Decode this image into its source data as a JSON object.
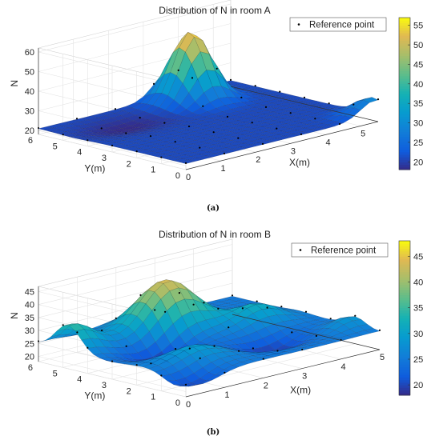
{
  "chart_data": [
    {
      "type": "surface",
      "title": "Distribution of N in room A",
      "xlabel": "X(m)",
      "ylabel": "Y(m)",
      "zlabel": "N",
      "x_ticks": [
        "0",
        "1",
        "2",
        "3",
        "4",
        "5"
      ],
      "y_ticks": [
        "0",
        "1",
        "2",
        "3",
        "4",
        "5",
        "6"
      ],
      "z_ticks": [
        "20",
        "30",
        "40",
        "50",
        "60"
      ],
      "xlim": [
        0,
        5.5
      ],
      "ylim": [
        0,
        6
      ],
      "zlim": [
        18,
        62
      ],
      "colorbar_ticks": [
        "20",
        "25",
        "30",
        "35",
        "40",
        "45",
        "50",
        "55"
      ],
      "colorbar_range": [
        18,
        57
      ],
      "colormap": "parula",
      "legend": "Reference point",
      "legend_position": "top-right",
      "grid": true,
      "caption": "(a)",
      "base_level": 21,
      "peaks": [
        {
          "x": 3.8,
          "y": 5.2,
          "amplitude": 35,
          "sx": 0.45,
          "sy": 0.6
        },
        {
          "x": 5.4,
          "y": 0.2,
          "amplitude": 9,
          "sx": 0.4,
          "sy": 0.5
        }
      ],
      "dips": [
        {
          "x": 1.5,
          "y": 4.6,
          "amplitude": -3,
          "sx": 0.8,
          "sy": 0.6
        }
      ]
    },
    {
      "type": "surface",
      "title": "Distribution of N in room B",
      "xlabel": "X(m)",
      "ylabel": "Y(m)",
      "zlabel": "N",
      "x_ticks": [
        "0",
        "1",
        "2",
        "3",
        "4",
        "5"
      ],
      "y_ticks": [
        "0",
        "1",
        "2",
        "3",
        "4",
        "5",
        "6"
      ],
      "z_ticks": [
        "20",
        "25",
        "30",
        "35",
        "40",
        "45"
      ],
      "xlim": [
        0,
        5
      ],
      "ylim": [
        0,
        6
      ],
      "zlim": [
        18,
        47
      ],
      "colorbar_ticks": [
        "20",
        "25",
        "30",
        "35",
        "40",
        "45"
      ],
      "colorbar_range": [
        18,
        48
      ],
      "colormap": "parula",
      "legend": "Reference point",
      "legend_position": "top-right",
      "grid": true,
      "caption": "(b)",
      "base_level": 25,
      "peaks": [
        {
          "x": 2.4,
          "y": 4.6,
          "amplitude": 19,
          "sx": 0.65,
          "sy": 0.7
        },
        {
          "x": 0.1,
          "y": 4.8,
          "amplitude": 10,
          "sx": 0.5,
          "sy": 0.5
        },
        {
          "x": 1.2,
          "y": 1.6,
          "amplitude": 5,
          "sx": 0.6,
          "sy": 0.6
        },
        {
          "x": 3.9,
          "y": 3.3,
          "amplitude": 7,
          "sx": 0.5,
          "sy": 0.5
        },
        {
          "x": 4.8,
          "y": 1.0,
          "amplitude": 4,
          "sx": 0.4,
          "sy": 0.4
        }
      ],
      "dips": [
        {
          "x": 1.4,
          "y": 3.2,
          "amplitude": -7,
          "sx": 0.6,
          "sy": 0.6
        },
        {
          "x": 3.2,
          "y": 1.6,
          "amplitude": -6,
          "sx": 0.6,
          "sy": 0.5
        },
        {
          "x": 0.4,
          "y": 0.4,
          "amplitude": -5,
          "sx": 0.5,
          "sy": 0.5
        }
      ]
    }
  ]
}
